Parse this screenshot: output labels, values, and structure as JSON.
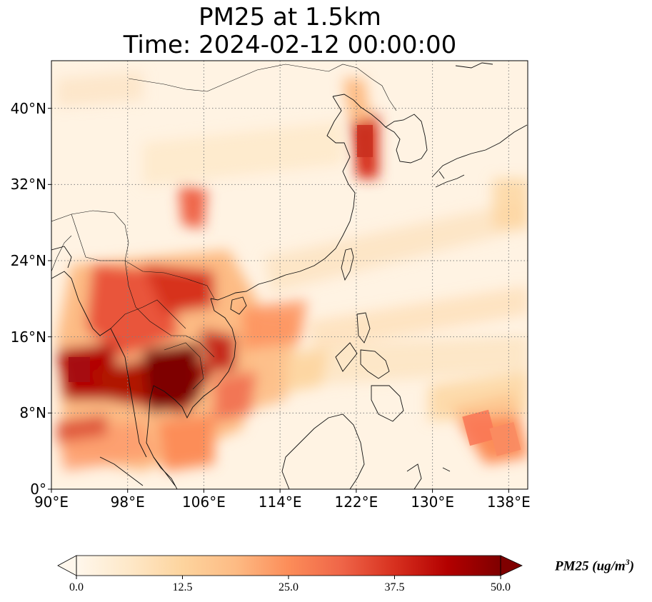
{
  "title": {
    "line1": "PM25 at 1.5km",
    "line2": "Time: 2024-02-12 00:00:00"
  },
  "map": {
    "lon_range": [
      90,
      140
    ],
    "lat_range": [
      0,
      45
    ],
    "gridline_style": "dotted",
    "colormap": "OrRd",
    "x_ticks": [
      "90°E",
      "98°E",
      "106°E",
      "114°E",
      "122°E",
      "130°E",
      "138°E"
    ],
    "y_ticks": [
      "40°N",
      "32°N",
      "24°N",
      "16°N",
      "8°N",
      "0°"
    ],
    "x_tick_values": [
      90,
      98,
      106,
      114,
      122,
      130,
      138
    ],
    "y_tick_values": [
      40,
      32,
      24,
      16,
      8,
      0
    ]
  },
  "colorbar": {
    "ticks": [
      "0.0",
      "12.5",
      "25.0",
      "37.5",
      "50.0"
    ],
    "tick_values": [
      0,
      12.5,
      25,
      37.5,
      50
    ],
    "range": [
      0,
      50
    ],
    "extend": "both",
    "label_main": "PM25 (ug/m",
    "label_sup": "3",
    "label_close": ")",
    "colors": [
      "#fff7ec",
      "#fee8c8",
      "#fdd49e",
      "#fdbb84",
      "#fc8d59",
      "#ef6548",
      "#d7301f",
      "#b30000",
      "#7f0000"
    ]
  }
}
